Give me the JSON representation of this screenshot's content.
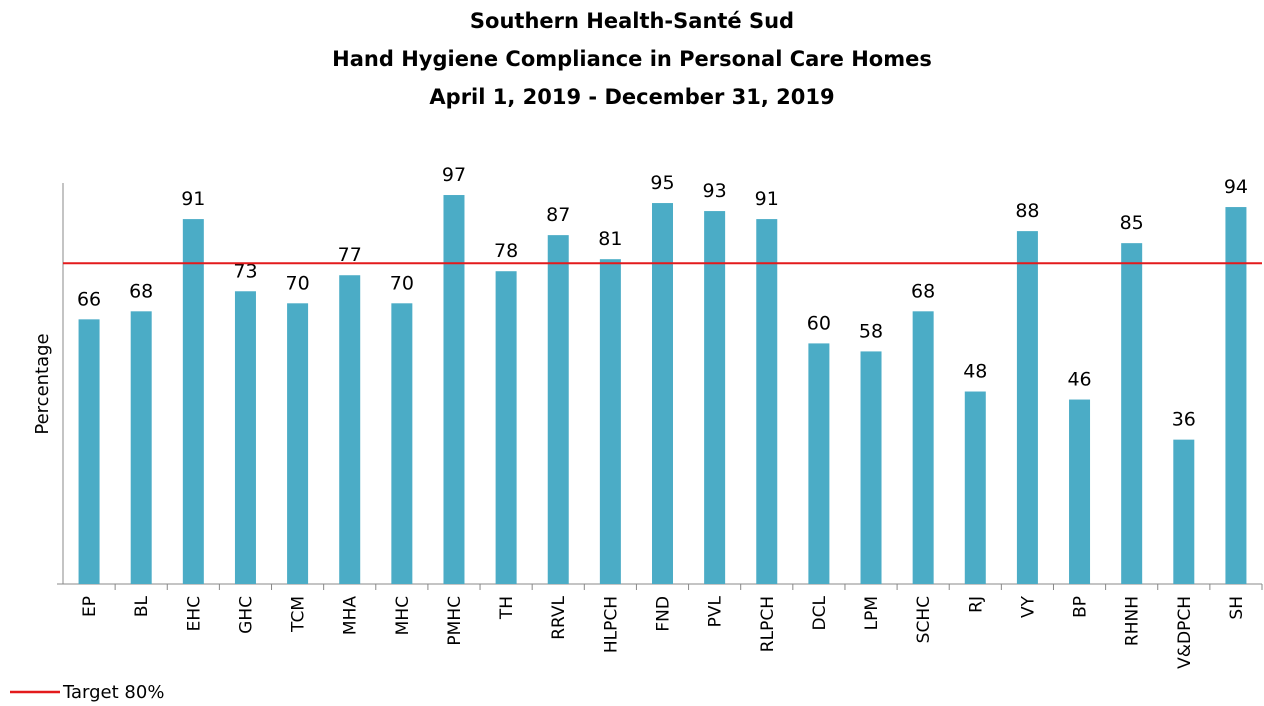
{
  "chart_data": {
    "type": "bar",
    "title": [
      "Southern Health-Santé Sud",
      "Hand Hygiene Compliance in Personal Care Homes",
      "April 1, 2019 - December 31, 2019"
    ],
    "y_label": "Percentage",
    "categories": [
      "EP",
      "BL",
      "EHC",
      "GHC",
      "TCM",
      "MHA",
      "MHC",
      "PMHC",
      "TH",
      "RRVL",
      "HLPCH",
      "FND",
      "PVL",
      "RLPCH",
      "DCL",
      "LPM",
      "SCHC",
      "RJ",
      "VY",
      "BP",
      "RHNH",
      "V&DPCH",
      "SH"
    ],
    "values": [
      66,
      68,
      91,
      73,
      70,
      77,
      70,
      97,
      78,
      87,
      81,
      95,
      93,
      91,
      60,
      58,
      68,
      48,
      88,
      46,
      85,
      36,
      94
    ],
    "color": "#4bacc6",
    "ylim": [
      0,
      100
    ],
    "target": {
      "value": 80,
      "label": "Target 80%",
      "color": "#e31a1c"
    },
    "legend": "bottom-left"
  }
}
